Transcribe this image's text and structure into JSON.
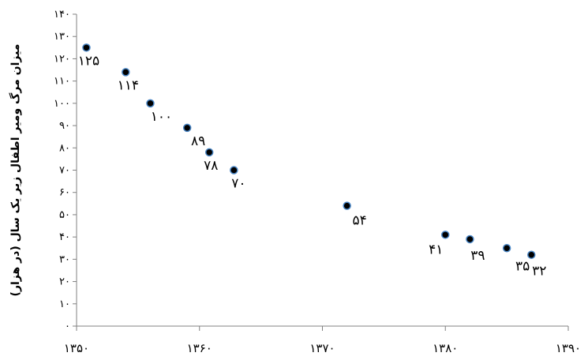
{
  "chart_data": {
    "type": "scatter",
    "title": "",
    "xlabel": "",
    "ylabel": "میزان مرگ ومیر اطفال زیر یک سال (در هزار)",
    "xlim": [
      1350,
      1390
    ],
    "ylim": [
      0,
      140
    ],
    "x_ticks": [
      1350,
      1360,
      1370,
      1380,
      1390
    ],
    "x_tick_labels": [
      "۱۳۵۰",
      "۱۳۶۰",
      "۱۳۷۰",
      "۱۳۸۰",
      "۱۳۹۰"
    ],
    "y_ticks": [
      0,
      10,
      20,
      30,
      40,
      50,
      60,
      70,
      80,
      90,
      100,
      110,
      120,
      130,
      140
    ],
    "y_tick_labels": [
      "۰",
      "۱۰",
      "۲۰",
      "۳۰",
      "۴۰",
      "۵۰",
      "۶۰",
      "۷۰",
      "۸۰",
      "۹۰",
      "۱۰۰",
      "۱۱۰",
      "۱۲۰",
      "۱۳۰",
      "۱۴۰"
    ],
    "grid": false,
    "legend": "none",
    "marker_color": "#000000",
    "marker_edge_color": "#4a86c5",
    "points": [
      {
        "x": 1350.8,
        "y": 125,
        "label": "۱۲۵"
      },
      {
        "x": 1354.0,
        "y": 114,
        "label": "۱۱۴"
      },
      {
        "x": 1356.0,
        "y": 100,
        "label": "۱۰۰"
      },
      {
        "x": 1359.0,
        "y": 89,
        "label": "۸۹"
      },
      {
        "x": 1360.8,
        "y": 78,
        "label": "۷۸"
      },
      {
        "x": 1362.8,
        "y": 70,
        "label": "۷۰"
      },
      {
        "x": 1372.0,
        "y": 54,
        "label": "۵۴"
      },
      {
        "x": 1380.0,
        "y": 41,
        "label": "۴۱"
      },
      {
        "x": 1382.0,
        "y": 39,
        "label": "۳۹"
      },
      {
        "x": 1385.0,
        "y": 35,
        "label": "۳۵"
      },
      {
        "x": 1387.0,
        "y": 32,
        "label": "۳۲"
      }
    ]
  }
}
